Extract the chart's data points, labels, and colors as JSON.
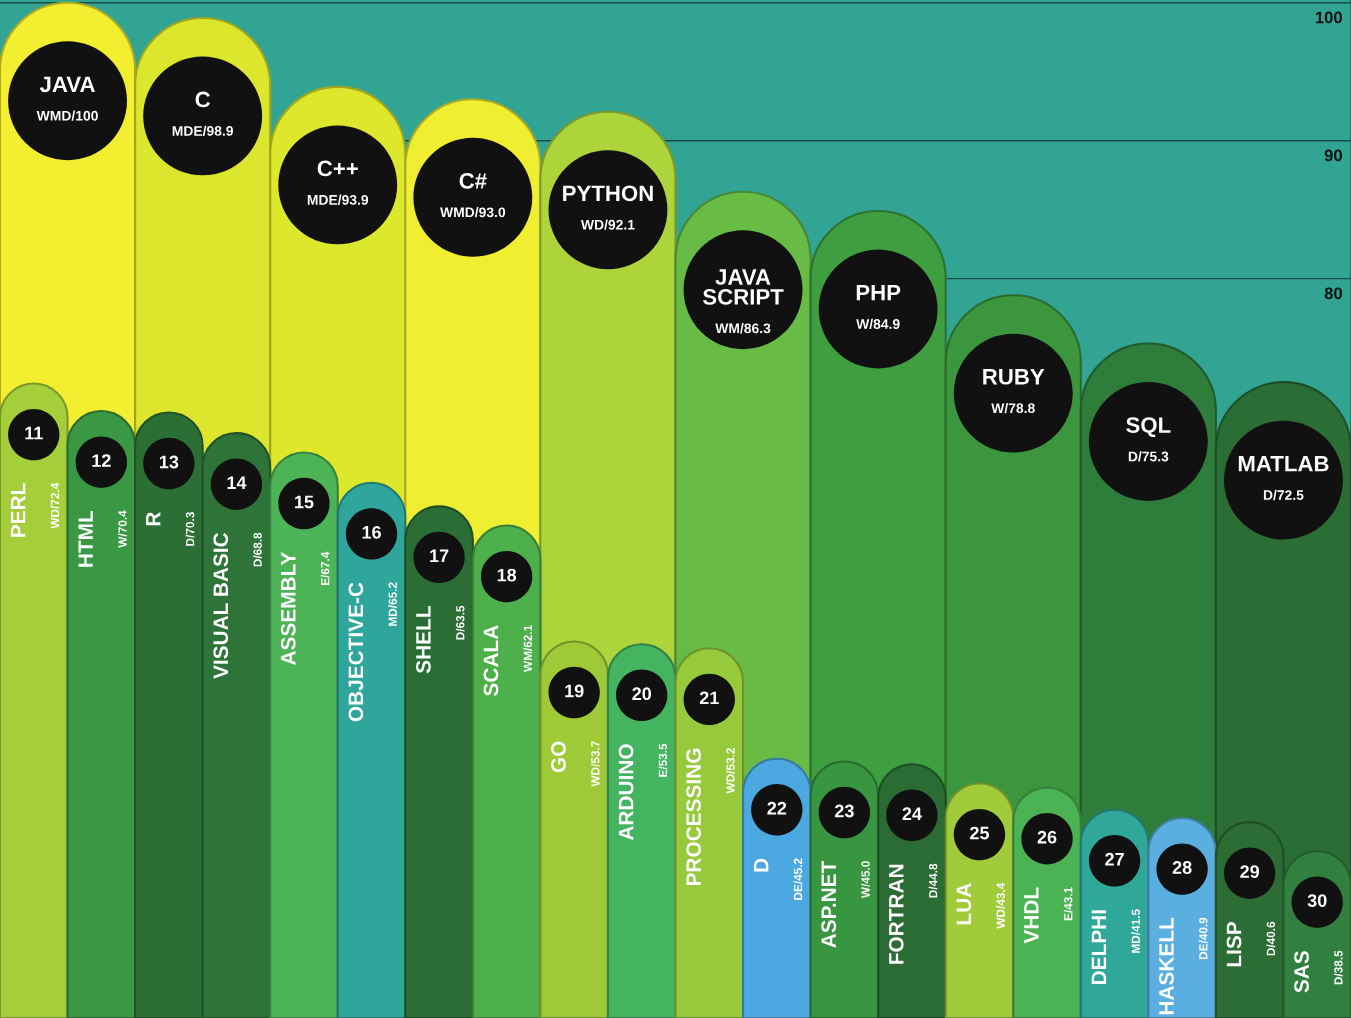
{
  "chart_data": [
    {
      "type": "bar",
      "categories": [
        "JAVA",
        "C",
        "C++",
        "C#",
        "PYTHON",
        "JAVA\nSCRIPT",
        "PHP",
        "RUBY",
        "SQL",
        "MATLAB"
      ],
      "values": [
        100,
        98.9,
        93.9,
        93.0,
        92.1,
        86.3,
        84.9,
        78.8,
        75.3,
        72.5
      ],
      "value_labels": [
        "WMD/100",
        "MDE/98.9",
        "MDE/93.9",
        "WMD/93.0",
        "WD/92.1",
        "WM/86.3",
        "W/84.9",
        "W/78.8",
        "D/75.3",
        "D/72.5"
      ],
      "colors": [
        "#f3ee2f",
        "#dbe62c",
        "#dde72c",
        "#f0ee30",
        "#aed43b",
        "#68bb45",
        "#3f9e40",
        "#3c963e",
        "#2f7d3b",
        "#2a6d35"
      ],
      "ylim": [
        26.4,
        100.2
      ],
      "yticks": [
        80,
        90,
        100
      ],
      "grid": "y",
      "tick_labels": "y"
    },
    {
      "type": "bar",
      "categories": [
        "PERL",
        "HTML",
        "R",
        "VISUAL BASIC",
        "ASSEMBLY",
        "OBJECTIVE-C",
        "SHELL",
        "SCALA",
        "GO",
        "ARDUINO",
        "PROCESSING",
        "D",
        "ASP.NET",
        "FORTRAN",
        "LUA",
        "VHDL",
        "DELPHI",
        "HASKELL",
        "LISP",
        "SAS"
      ],
      "values": [
        72.4,
        70.4,
        70.3,
        68.8,
        67.4,
        65.2,
        63.5,
        62.1,
        53.7,
        53.5,
        53.2,
        45.2,
        45.0,
        44.8,
        43.4,
        43.1,
        41.5,
        40.9,
        40.6,
        38.5
      ],
      "value_labels": [
        "WD/72.4",
        "W/70.4",
        "D/70.3",
        "D/68.8",
        "E/67.4",
        "MD/65.2",
        "D/63.5",
        "WM/62.1",
        "WD/53.7",
        "E/53.5",
        "WD/53.2",
        "DE/45.2",
        "W/45.0",
        "D/44.8",
        "WD/43.4",
        "E/43.1",
        "MD/41.5",
        "DE/40.9",
        "D/40.6",
        "D/38.5"
      ],
      "colors": [
        "#a5cf3a",
        "#3a9844",
        "#2c6f35",
        "#2e7438",
        "#4db357",
        "#2fa69b",
        "#2b6e35",
        "#4db04b",
        "#9fca38",
        "#44b460",
        "#97c93c",
        "#4ba8e0",
        "#37963f",
        "#2a6c34",
        "#a0cb3a",
        "#4bb353",
        "#2fa89a",
        "#5aaee0",
        "#2c6d36",
        "#318040"
      ],
      "annotations": [
        {
          "text": "11",
          "x": "PERL",
          "y": 72.4
        },
        {
          "text": "12",
          "x": "HTML",
          "y": 70.4
        },
        {
          "text": "13",
          "x": "R",
          "y": 70.3
        },
        {
          "text": "14",
          "x": "VISUAL BASIC",
          "y": 68.8
        },
        {
          "text": "15",
          "x": "ASSEMBLY",
          "y": 67.4
        },
        {
          "text": "16",
          "x": "OBJECTIVE-C",
          "y": 65.2
        },
        {
          "text": "17",
          "x": "SHELL",
          "y": 63.5
        },
        {
          "text": "18",
          "x": "SCALA",
          "y": 62.1
        },
        {
          "text": "19",
          "x": "GO",
          "y": 53.7
        },
        {
          "text": "20",
          "x": "ARDUINO",
          "y": 53.5
        },
        {
          "text": "21",
          "x": "PROCESSING",
          "y": 53.2
        },
        {
          "text": "22",
          "x": "D",
          "y": 45.2
        },
        {
          "text": "23",
          "x": "ASP.NET",
          "y": 45.0
        },
        {
          "text": "24",
          "x": "FORTRAN",
          "y": 44.8
        },
        {
          "text": "25",
          "x": "LUA",
          "y": 43.4
        },
        {
          "text": "26",
          "x": "VHDL",
          "y": 43.1
        },
        {
          "text": "27",
          "x": "DELPHI",
          "y": 41.5
        },
        {
          "text": "28",
          "x": "HASKELL",
          "y": 40.9
        },
        {
          "text": "29",
          "x": "LISP",
          "y": 40.6
        },
        {
          "text": "30",
          "x": "SAS",
          "y": 38.5
        }
      ],
      "ylim": [
        26.4,
        100.2
      ],
      "tick_labels": false
    }
  ]
}
